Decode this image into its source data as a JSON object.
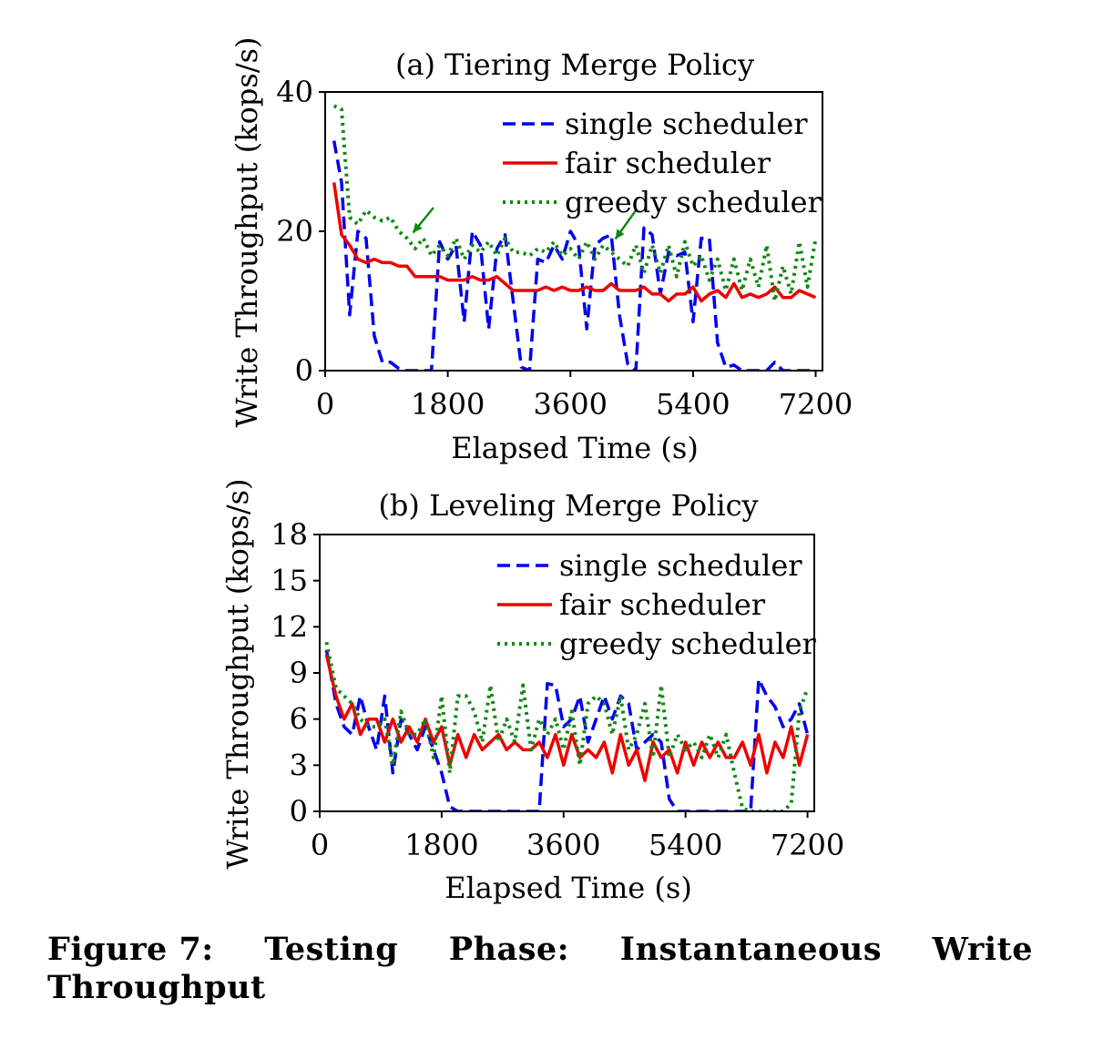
{
  "caption": {
    "words": [
      "Figure 7:",
      "Testing",
      "Phase:",
      "Instantaneous",
      "Write"
    ],
    "line2": "Throughput"
  },
  "chart_data": [
    {
      "type": "line",
      "title": "(a) Tiering Merge Policy",
      "xlabel": "Elapsed Time (s)",
      "ylabel": "Write Throughput (kops/s)",
      "xlim": [
        0,
        7300
      ],
      "ylim": [
        0,
        40
      ],
      "xticks": [
        0,
        1800,
        3600,
        5400,
        7200
      ],
      "yticks": [
        0,
        20,
        40
      ],
      "grid": false,
      "legend_position": "top-right",
      "annotations": [
        {
          "type": "arrow",
          "color": "#118811",
          "from": [
            1590,
            23.4
          ],
          "to": [
            1290,
            19.8
          ]
        },
        {
          "type": "arrow",
          "color": "#118811",
          "from": [
            4560,
            23.0
          ],
          "to": [
            4260,
            18.9
          ]
        }
      ],
      "series": [
        {
          "name": "single scheduler",
          "color": "#0000ee",
          "style": "dashed",
          "x": [
            130,
            240,
            360,
            480,
            600,
            720,
            840,
            960,
            1080,
            1200,
            1320,
            1440,
            1560,
            1680,
            1800,
            1920,
            2040,
            2160,
            2280,
            2400,
            2520,
            2640,
            2760,
            2880,
            3000,
            3120,
            3240,
            3360,
            3480,
            3600,
            3720,
            3840,
            3960,
            4080,
            4200,
            4320,
            4440,
            4560,
            4680,
            4800,
            4920,
            5040,
            5160,
            5280,
            5400,
            5520,
            5640,
            5760,
            5880,
            6000,
            6120,
            6240,
            6360,
            6480,
            6600,
            6720,
            6840,
            6960,
            7080,
            7200
          ],
          "values": [
            33,
            27,
            8,
            20,
            19,
            5,
            1.2,
            1.2,
            0.3,
            0,
            0,
            0,
            0,
            18.5,
            16,
            18,
            7,
            20,
            18,
            6,
            17.5,
            19.5,
            10,
            0.5,
            0,
            16,
            15.5,
            18,
            16,
            20,
            18,
            6,
            18,
            19,
            19.5,
            8,
            1,
            0,
            20.5,
            19.5,
            11,
            17,
            16.5,
            17,
            7,
            19,
            19,
            4,
            0.5,
            0.8,
            0,
            0,
            0,
            0,
            1.2,
            0,
            0,
            0,
            0,
            0
          ]
        },
        {
          "name": "fair scheduler",
          "color": "#ee0000",
          "style": "solid",
          "x": [
            130,
            240,
            360,
            480,
            600,
            720,
            840,
            960,
            1080,
            1200,
            1320,
            1440,
            1560,
            1680,
            1800,
            1920,
            2040,
            2160,
            2280,
            2400,
            2520,
            2640,
            2760,
            2880,
            3000,
            3120,
            3240,
            3360,
            3480,
            3600,
            3720,
            3840,
            3960,
            4080,
            4200,
            4320,
            4440,
            4560,
            4680,
            4800,
            4920,
            5040,
            5160,
            5280,
            5400,
            5520,
            5640,
            5760,
            5880,
            6000,
            6120,
            6240,
            6360,
            6480,
            6600,
            6720,
            6840,
            6960,
            7080,
            7200
          ],
          "values": [
            27,
            19.5,
            18,
            16,
            15.5,
            16,
            15.5,
            15.5,
            15,
            15,
            13.5,
            13.5,
            13.5,
            13.5,
            13,
            13,
            13,
            13.5,
            13,
            13,
            13.5,
            12.5,
            11.5,
            11.5,
            11.5,
            11.5,
            12,
            11.5,
            12,
            11.5,
            11.5,
            12,
            11.5,
            11.5,
            12.5,
            11.5,
            11.5,
            11.5,
            12,
            11,
            11,
            10,
            11,
            11,
            12,
            10,
            11,
            11.5,
            10.5,
            12.5,
            10.5,
            11,
            10.5,
            11,
            12,
            10.5,
            10.5,
            11.5,
            11,
            10.5
          ]
        },
        {
          "name": "greedy scheduler",
          "color": "#118811",
          "style": "dotted",
          "x": [
            130,
            240,
            360,
            480,
            600,
            720,
            840,
            960,
            1080,
            1200,
            1320,
            1440,
            1560,
            1680,
            1800,
            1920,
            2040,
            2160,
            2280,
            2400,
            2520,
            2640,
            2760,
            2880,
            3000,
            3120,
            3240,
            3360,
            3480,
            3600,
            3720,
            3840,
            3960,
            4080,
            4200,
            4320,
            4440,
            4560,
            4680,
            4800,
            4920,
            5040,
            5160,
            5280,
            5400,
            5520,
            5640,
            5760,
            5880,
            6000,
            6120,
            6240,
            6360,
            6480,
            6600,
            6720,
            6840,
            6960,
            7080,
            7200
          ],
          "values": [
            38,
            37.5,
            22,
            21,
            23,
            22,
            21.5,
            22,
            20,
            19,
            17.5,
            19,
            16.5,
            18,
            16.5,
            19,
            16,
            18,
            17,
            18.5,
            16.5,
            19,
            17,
            17,
            16.5,
            17.5,
            17,
            18.5,
            16.5,
            17.5,
            16,
            18.5,
            16,
            18,
            17,
            16,
            15,
            18,
            14,
            18,
            14,
            18,
            13.5,
            18.5,
            15,
            16.5,
            13,
            16,
            11.5,
            16,
            11.5,
            16,
            12,
            18,
            10,
            15,
            11,
            18.5,
            12,
            19
          ]
        }
      ]
    },
    {
      "type": "line",
      "title": "(b) Leveling Merge Policy",
      "xlabel": "Elapsed Time (s)",
      "ylabel": "Write Throughput (kops/s)",
      "xlim": [
        0,
        7300
      ],
      "ylim": [
        0,
        18
      ],
      "xticks": [
        0,
        1800,
        3600,
        5400,
        7200
      ],
      "yticks": [
        0,
        3,
        6,
        9,
        12,
        15,
        18
      ],
      "grid": false,
      "legend_position": "top-right",
      "series": [
        {
          "name": "single scheduler",
          "color": "#0000ee",
          "style": "dashed",
          "x": [
            100,
            240,
            360,
            480,
            600,
            720,
            840,
            960,
            1080,
            1200,
            1320,
            1440,
            1560,
            1680,
            1800,
            1920,
            2040,
            2160,
            2280,
            2400,
            2520,
            2640,
            2760,
            2880,
            3000,
            3120,
            3240,
            3360,
            3480,
            3600,
            3720,
            3840,
            3960,
            4080,
            4200,
            4320,
            4440,
            4560,
            4680,
            4800,
            4920,
            5040,
            5160,
            5280,
            5400,
            5520,
            5640,
            5760,
            5880,
            6000,
            6120,
            6240,
            6360,
            6480,
            6600,
            6720,
            6840,
            6960,
            7080,
            7200
          ],
          "values": [
            10.5,
            7,
            5.5,
            5,
            7.5,
            5.5,
            4,
            7.5,
            2.5,
            6,
            5,
            4,
            5.5,
            4,
            2.5,
            0.3,
            0,
            0,
            0,
            0,
            0,
            0,
            0,
            0,
            0,
            0,
            0,
            8.3,
            8.2,
            5.5,
            6,
            7.5,
            4.5,
            6,
            7.5,
            6,
            7.5,
            7,
            4,
            4.5,
            5,
            4.5,
            0.8,
            0,
            0,
            0,
            0,
            0,
            0,
            0,
            0,
            0,
            0,
            8.6,
            7.5,
            6.8,
            5.5,
            6,
            7,
            5
          ]
        },
        {
          "name": "fair scheduler",
          "color": "#ee0000",
          "style": "solid",
          "x": [
            100,
            240,
            360,
            480,
            600,
            720,
            840,
            960,
            1080,
            1200,
            1320,
            1440,
            1560,
            1680,
            1800,
            1920,
            2040,
            2160,
            2280,
            2400,
            2520,
            2640,
            2760,
            2880,
            3000,
            3120,
            3240,
            3360,
            3480,
            3600,
            3720,
            3840,
            3960,
            4080,
            4200,
            4320,
            4440,
            4560,
            4680,
            4800,
            4920,
            5040,
            5160,
            5280,
            5400,
            5520,
            5640,
            5760,
            5880,
            6000,
            6120,
            6240,
            6360,
            6480,
            6600,
            6720,
            6840,
            6960,
            7080,
            7200
          ],
          "values": [
            10.2,
            7.5,
            6,
            7,
            5,
            6,
            6,
            4.5,
            6,
            4.5,
            5.5,
            4.5,
            6,
            4.5,
            5.5,
            3,
            5,
            3.5,
            5,
            4,
            4.5,
            5,
            4,
            4.5,
            4,
            4,
            4.5,
            3.5,
            5,
            3,
            5,
            3.5,
            4,
            3.5,
            4.5,
            2.5,
            5,
            3,
            4,
            2,
            4.5,
            3.5,
            4,
            2.5,
            4.5,
            3,
            4.5,
            3.5,
            4.5,
            3.5,
            3.5,
            4.5,
            3,
            5,
            2.5,
            4.5,
            3.5,
            5.5,
            3,
            5
          ]
        },
        {
          "name": "greedy scheduler",
          "color": "#118811",
          "style": "dotted",
          "x": [
            100,
            240,
            360,
            480,
            600,
            720,
            840,
            960,
            1080,
            1200,
            1320,
            1440,
            1560,
            1680,
            1800,
            1920,
            2040,
            2160,
            2280,
            2400,
            2520,
            2640,
            2760,
            2880,
            3000,
            3120,
            3240,
            3360,
            3480,
            3600,
            3720,
            3840,
            3960,
            4080,
            4200,
            4320,
            4440,
            4560,
            4680,
            4800,
            4920,
            5040,
            5160,
            5280,
            5400,
            5520,
            5640,
            5760,
            5880,
            6000,
            6120,
            6240,
            6360,
            6480,
            6600,
            6720,
            6840,
            6960,
            7080,
            7200
          ],
          "values": [
            11,
            8,
            7.5,
            7,
            6,
            5.5,
            5.5,
            6,
            3,
            6.5,
            5,
            5,
            6,
            3.5,
            7.5,
            2.5,
            7.5,
            7.5,
            6.5,
            4.5,
            8.2,
            4.5,
            6,
            4.5,
            8.2,
            4,
            6,
            5,
            6,
            4,
            6.5,
            3,
            7,
            7.5,
            7,
            5,
            7.5,
            4,
            5,
            7,
            3.5,
            8.2,
            3.5,
            5,
            4,
            4.5,
            3.5,
            5,
            3.5,
            5,
            2.5,
            0.2,
            0,
            0,
            0,
            0,
            0,
            0.5,
            6.5,
            8
          ]
        }
      ]
    }
  ]
}
